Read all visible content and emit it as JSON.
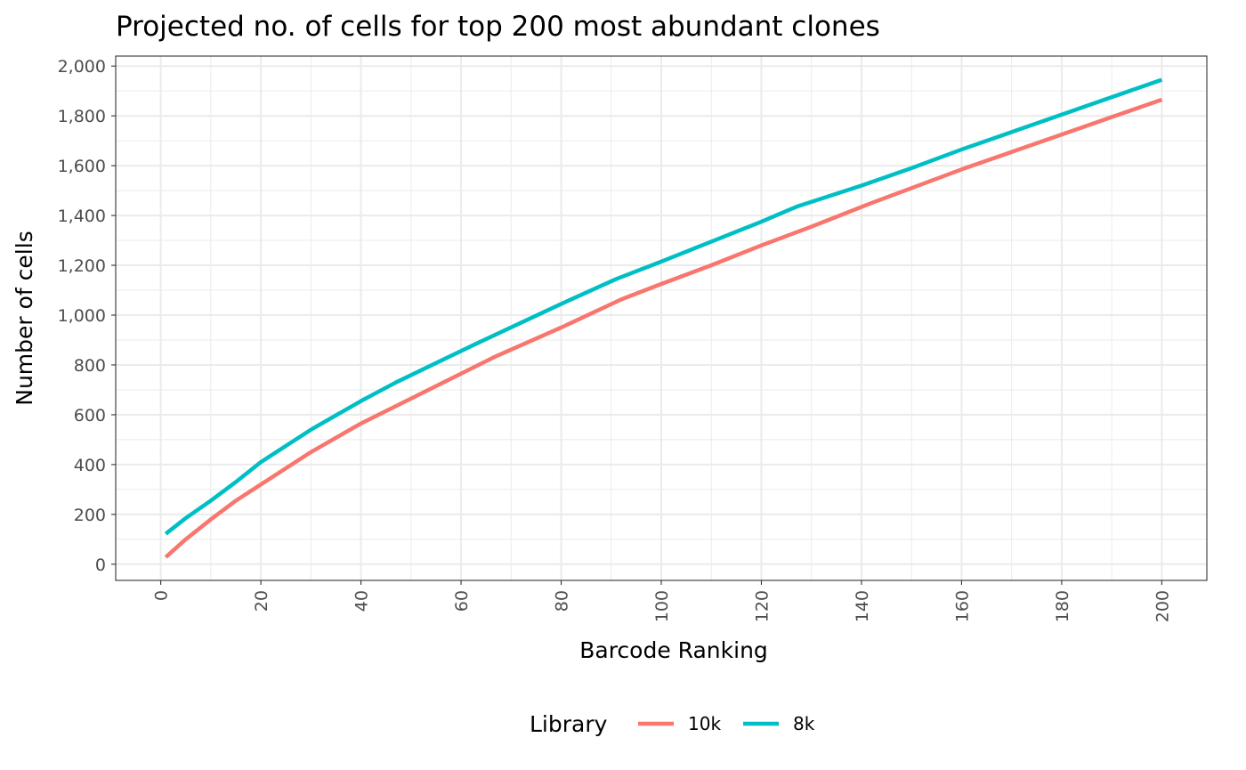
{
  "chart_data": {
    "type": "line",
    "title": "Projected no. of cells for top 200 most abundant clones",
    "xlabel": "Barcode Ranking",
    "ylabel": "Number of cells",
    "xlim": [
      -9,
      209
    ],
    "ylim": [
      -65,
      2040
    ],
    "x_ticks": [
      0,
      20,
      40,
      60,
      80,
      100,
      120,
      140,
      160,
      180,
      200
    ],
    "x_tick_labels": [
      "0",
      "20",
      "40",
      "60",
      "80",
      "100",
      "120",
      "140",
      "160",
      "180",
      "200"
    ],
    "y_ticks": [
      0,
      200,
      400,
      600,
      800,
      1000,
      1200,
      1400,
      1600,
      1800,
      2000
    ],
    "y_tick_labels": [
      "0",
      "200",
      "400",
      "600",
      "800",
      "1,000",
      "1,200",
      "1,400",
      "1,600",
      "1,800",
      "2,000"
    ],
    "grid": true,
    "legend": {
      "title": "Library",
      "position": "bottom"
    },
    "series": [
      {
        "name": "10k",
        "color": "#F8766D",
        "x": [
          1,
          5,
          10,
          15,
          20,
          30,
          40,
          50,
          60,
          67,
          80,
          92,
          100,
          110,
          120,
          130,
          142,
          150,
          160,
          170,
          180,
          190,
          200
        ],
        "values": [
          28,
          100,
          180,
          255,
          320,
          450,
          565,
          665,
          765,
          835,
          950,
          1063,
          1125,
          1200,
          1280,
          1355,
          1450,
          1510,
          1585,
          1655,
          1725,
          1795,
          1865
        ]
      },
      {
        "name": "8k",
        "color": "#00BFC4",
        "x": [
          1,
          5,
          10,
          15,
          20,
          30,
          40,
          47,
          63,
          80,
          91,
          100,
          110,
          120,
          127,
          140,
          150,
          160,
          170,
          180,
          190,
          200
        ],
        "values": [
          122,
          185,
          255,
          330,
          410,
          540,
          655,
          730,
          885,
          1045,
          1145,
          1215,
          1295,
          1375,
          1435,
          1520,
          1590,
          1665,
          1735,
          1805,
          1875,
          1945
        ]
      }
    ]
  }
}
